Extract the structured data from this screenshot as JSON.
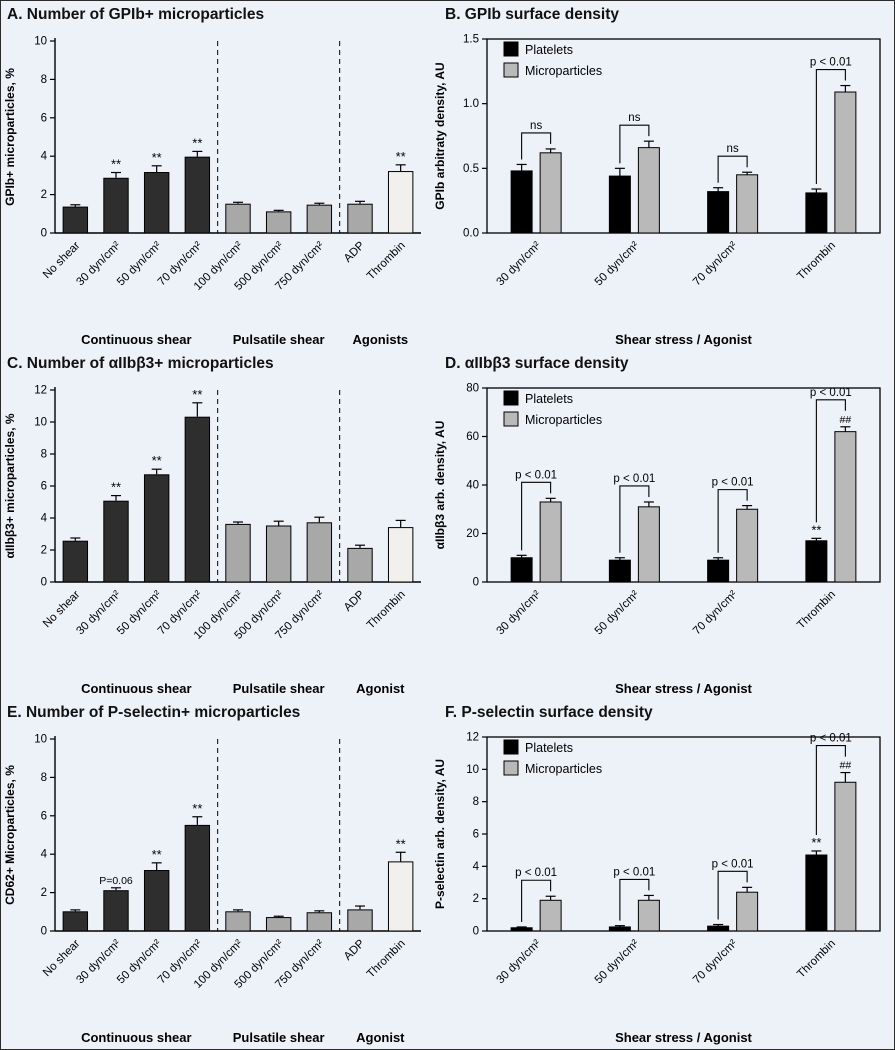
{
  "colors": {
    "background": "#edf1f8",
    "dark": "#2e2e2e",
    "mid": "#a8a8a8",
    "light": "#f1f0ec",
    "platelets": "#000000",
    "microparticles": "#b9b9b9",
    "axis": "#000000"
  },
  "chart_data": [
    {
      "id": "A",
      "type": "bar",
      "title": "A. Number of GPIb+ microparticles",
      "ylabel": "GPIb+ microparticles, %",
      "ylim": [
        0,
        10
      ],
      "yticks": [
        0,
        2,
        4,
        6,
        8,
        10
      ],
      "ytick_decimals": 0,
      "categories": [
        "No shear",
        "30 dyn/cm²",
        "50 dyn/cm²",
        "70 dyn/cm²",
        "100 dyn/cm²",
        "500 dyn/cm²",
        "750 dyn/cm²",
        "ADP",
        "Thrombin"
      ],
      "values": [
        1.35,
        2.85,
        3.15,
        3.95,
        1.5,
        1.1,
        1.45,
        1.5,
        3.2
      ],
      "errors": [
        0.12,
        0.3,
        0.35,
        0.3,
        0.1,
        0.08,
        0.1,
        0.15,
        0.35
      ],
      "annotations": [
        "",
        "**",
        "**",
        "**",
        "",
        "",
        "",
        "",
        "**"
      ],
      "bar_colors": [
        "dark",
        "dark",
        "dark",
        "dark",
        "mid",
        "mid",
        "mid",
        "mid",
        "light"
      ],
      "separators_after": [
        3,
        6
      ],
      "groups": [
        {
          "label": "Continuous shear",
          "from": 0,
          "to": 3
        },
        {
          "label": "Pulsatile shear",
          "from": 4,
          "to": 6
        },
        {
          "label": "Agonists",
          "from": 7,
          "to": 8
        }
      ]
    },
    {
      "id": "B",
      "type": "grouped-bar",
      "title": "B. GPIb surface density",
      "ylabel": "GPIb arbitraty density, AU",
      "xlabel": "Shear stress / Agonist",
      "ylim": [
        0,
        1.5
      ],
      "yticks": [
        0,
        0.5,
        1.0,
        1.5
      ],
      "ytick_decimals": 1,
      "categories": [
        "30 dyn/cm²",
        "50 dyn/cm²",
        "70 dyn/cm²",
        "Thrombin"
      ],
      "series": [
        {
          "name": "Platelets",
          "color": "platelets",
          "values": [
            0.48,
            0.44,
            0.32,
            0.31
          ],
          "errors": [
            0.05,
            0.06,
            0.03,
            0.03
          ],
          "annotations": [
            "",
            "",
            "",
            ""
          ]
        },
        {
          "name": "Microparticles",
          "color": "microparticles",
          "values": [
            0.62,
            0.66,
            0.45,
            1.09
          ],
          "errors": [
            0.03,
            0.05,
            0.02,
            0.05
          ],
          "annotations": [
            "",
            "",
            "",
            ""
          ]
        }
      ],
      "comparisons": [
        {
          "x": 0,
          "label": "ns"
        },
        {
          "x": 1,
          "label": "ns"
        },
        {
          "x": 2,
          "label": "ns"
        },
        {
          "x": 3,
          "label": "p < 0.01"
        }
      ]
    },
    {
      "id": "C",
      "type": "bar",
      "title": "C. Number of αIIbβ3+ microparticles",
      "ylabel": "αIIbβ3+ microparticles, %",
      "ylim": [
        0,
        12
      ],
      "yticks": [
        0,
        2,
        4,
        6,
        8,
        10,
        12
      ],
      "ytick_decimals": 0,
      "categories": [
        "No shear",
        "30 dyn/cm²",
        "50 dyn/cm²",
        "70 dyn/cm²",
        "100 dyn/cm²",
        "500 dyn/cm²",
        "750 dyn/cm²",
        "ADP",
        "Thrombin"
      ],
      "values": [
        2.55,
        5.05,
        6.7,
        10.3,
        3.6,
        3.5,
        3.7,
        2.1,
        3.4
      ],
      "errors": [
        0.2,
        0.35,
        0.35,
        0.9,
        0.15,
        0.3,
        0.35,
        0.2,
        0.45
      ],
      "annotations": [
        "",
        "**",
        "**",
        "**",
        "",
        "",
        "",
        "",
        ""
      ],
      "bar_colors": [
        "dark",
        "dark",
        "dark",
        "dark",
        "mid",
        "mid",
        "mid",
        "mid",
        "light"
      ],
      "separators_after": [
        3,
        6
      ],
      "groups": [
        {
          "label": "Continuous shear",
          "from": 0,
          "to": 3
        },
        {
          "label": "Pulsatile shear",
          "from": 4,
          "to": 6
        },
        {
          "label": "Agonist",
          "from": 7,
          "to": 8
        }
      ]
    },
    {
      "id": "D",
      "type": "grouped-bar",
      "title": "D. αIIbβ3 surface density",
      "ylabel": "αIIbβ3 arb. density, AU",
      "xlabel": "Shear stress / Agonist",
      "ylim": [
        0,
        80
      ],
      "yticks": [
        0,
        20,
        40,
        60,
        80
      ],
      "ytick_decimals": 0,
      "categories": [
        "30 dyn/cm²",
        "50 dyn/cm²",
        "70 dyn/cm²",
        "Thrombin"
      ],
      "series": [
        {
          "name": "Platelets",
          "color": "platelets",
          "values": [
            10,
            9,
            9,
            17
          ],
          "errors": [
            1,
            1,
            1,
            1
          ],
          "annotations": [
            "",
            "",
            "",
            "**"
          ]
        },
        {
          "name": "Microparticles",
          "color": "microparticles",
          "values": [
            33,
            31,
            30,
            62
          ],
          "errors": [
            1.5,
            2,
            1.5,
            2
          ],
          "annotations": [
            "",
            "",
            "",
            "##"
          ]
        }
      ],
      "comparisons": [
        {
          "x": 0,
          "label": "p < 0.01"
        },
        {
          "x": 1,
          "label": "p < 0.01"
        },
        {
          "x": 2,
          "label": "p < 0.01"
        },
        {
          "x": 3,
          "label": "p < 0.01"
        }
      ]
    },
    {
      "id": "E",
      "type": "bar",
      "title": "E. Number of P-selectin+ microparticles",
      "ylabel": "CD62+ Microparticles, %",
      "ylim": [
        0,
        10
      ],
      "yticks": [
        0,
        2,
        4,
        6,
        8,
        10
      ],
      "ytick_decimals": 0,
      "categories": [
        "No shear",
        "30 dyn/cm²",
        "50 dyn/cm²",
        "70 dyn/cm²",
        "100 dyn/cm²",
        "500 dyn/cm²",
        "750 dyn/cm²",
        "ADP",
        "Thrombin"
      ],
      "values": [
        1.0,
        2.1,
        3.15,
        5.5,
        1.0,
        0.7,
        0.95,
        1.1,
        3.6
      ],
      "errors": [
        0.1,
        0.15,
        0.4,
        0.45,
        0.1,
        0.07,
        0.1,
        0.2,
        0.5
      ],
      "annotations": [
        "",
        "P=0.06",
        "**",
        "**",
        "",
        "",
        "",
        "",
        "**"
      ],
      "bar_colors": [
        "dark",
        "dark",
        "dark",
        "dark",
        "mid",
        "mid",
        "mid",
        "mid",
        "light"
      ],
      "separators_after": [
        3,
        6
      ],
      "groups": [
        {
          "label": "Continuous shear",
          "from": 0,
          "to": 3
        },
        {
          "label": "Pulsatile shear",
          "from": 4,
          "to": 6
        },
        {
          "label": "Agonist",
          "from": 7,
          "to": 8
        }
      ]
    },
    {
      "id": "F",
      "type": "grouped-bar",
      "title": "F. P-selectin surface density",
      "ylabel": "P-selectin arb. density, AU",
      "xlabel": "Shear stress / Agonist",
      "ylim": [
        0,
        12
      ],
      "yticks": [
        0,
        2,
        4,
        6,
        8,
        10,
        12
      ],
      "ytick_decimals": 0,
      "categories": [
        "30 dyn/cm²",
        "50 dyn/cm²",
        "70 dyn/cm²",
        "Thrombin"
      ],
      "series": [
        {
          "name": "Platelets",
          "color": "platelets",
          "values": [
            0.2,
            0.25,
            0.3,
            4.7
          ],
          "errors": [
            0.05,
            0.08,
            0.1,
            0.25
          ],
          "annotations": [
            "",
            "",
            "",
            "**"
          ]
        },
        {
          "name": "Microparticles",
          "color": "microparticles",
          "values": [
            1.9,
            1.9,
            2.4,
            9.2
          ],
          "errors": [
            0.25,
            0.3,
            0.3,
            0.6
          ],
          "annotations": [
            "",
            "",
            "",
            "##"
          ]
        }
      ],
      "comparisons": [
        {
          "x": 0,
          "label": "p < 0.01"
        },
        {
          "x": 1,
          "label": "p < 0.01"
        },
        {
          "x": 2,
          "label": "p < 0.01"
        },
        {
          "x": 3,
          "label": "p < 0.01"
        }
      ]
    }
  ]
}
